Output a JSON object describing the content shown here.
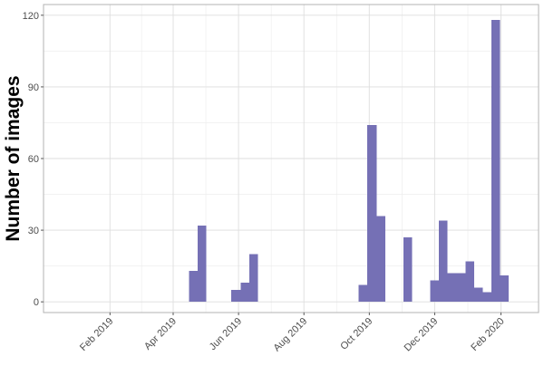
{
  "chart_data": {
    "type": "bar",
    "title": "",
    "xlabel": "",
    "ylabel": "Number of images",
    "ylim": [
      -4.5,
      124.5
    ],
    "yticks": [
      0,
      30,
      60,
      90,
      120
    ],
    "x_range": [
      "2018-12-01",
      "2020-03-07"
    ],
    "xticks": [
      {
        "date": "2019-02-01",
        "label": "Feb 2019"
      },
      {
        "date": "2019-04-01",
        "label": "Apr 2019"
      },
      {
        "date": "2019-06-01",
        "label": "Jun 2019"
      },
      {
        "date": "2019-08-01",
        "label": "Aug 2019"
      },
      {
        "date": "2019-10-01",
        "label": "Oct 2019"
      },
      {
        "date": "2019-12-01",
        "label": "Dec 2019"
      },
      {
        "date": "2020-02-01",
        "label": "Feb 2020"
      }
    ],
    "grid": true,
    "bar_color": "#7570b5",
    "bins": [
      {
        "start": "2019-04-16",
        "end": "2019-04-24",
        "count": 13
      },
      {
        "start": "2019-04-24",
        "end": "2019-05-02",
        "count": 32
      },
      {
        "start": "2019-05-25",
        "end": "2019-06-03",
        "count": 5
      },
      {
        "start": "2019-06-03",
        "end": "2019-06-11",
        "count": 8
      },
      {
        "start": "2019-06-11",
        "end": "2019-06-19",
        "count": 20
      },
      {
        "start": "2019-09-21",
        "end": "2019-09-29",
        "count": 7
      },
      {
        "start": "2019-09-29",
        "end": "2019-10-08",
        "count": 74
      },
      {
        "start": "2019-10-08",
        "end": "2019-10-16",
        "count": 36
      },
      {
        "start": "2019-11-02",
        "end": "2019-11-10",
        "count": 27
      },
      {
        "start": "2019-11-27",
        "end": "2019-12-05",
        "count": 9
      },
      {
        "start": "2019-12-05",
        "end": "2019-12-13",
        "count": 34
      },
      {
        "start": "2019-12-13",
        "end": "2019-12-21",
        "count": 12
      },
      {
        "start": "2019-12-21",
        "end": "2019-12-30",
        "count": 12
      },
      {
        "start": "2019-12-30",
        "end": "2020-01-07",
        "count": 17
      },
      {
        "start": "2020-01-07",
        "end": "2020-01-15",
        "count": 6
      },
      {
        "start": "2020-01-15",
        "end": "2020-01-23",
        "count": 4
      },
      {
        "start": "2020-01-23",
        "end": "2020-01-31",
        "count": 118
      },
      {
        "start": "2020-01-31",
        "end": "2020-02-08",
        "count": 11
      }
    ]
  }
}
